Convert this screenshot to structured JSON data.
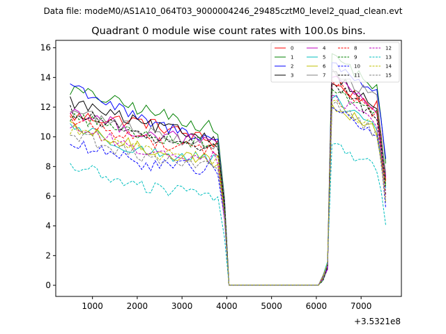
{
  "chart_data": {
    "type": "line",
    "suptitle": "Data file: modeM0/AS1A10_064T03_9000004246_29485cztM0_level2_quad_clean.evt",
    "title": "Quadrant 0 module wise count rates with 100.0s bins.",
    "xlabel": "",
    "ylabel": "",
    "x_offset_label": "+3.5321e8",
    "xlim": [
      180,
      7900
    ],
    "ylim": [
      -0.75,
      16.5
    ],
    "xticks": [
      1000,
      2000,
      3000,
      4000,
      5000,
      6000,
      7000
    ],
    "yticks": [
      0,
      2,
      4,
      6,
      8,
      10,
      12,
      14,
      16
    ],
    "xtick_labels": [
      "1000",
      "2000",
      "3000",
      "4000",
      "5000",
      "6000",
      "7000"
    ],
    "ytick_labels": [
      "0",
      "2",
      "4",
      "6",
      "8",
      "10",
      "12",
      "14",
      "16"
    ],
    "legend": {
      "position": "top-right",
      "columns": 4
    },
    "series": [
      {
        "name": "0",
        "color": "#ff0000",
        "dash": "solid",
        "seg1": [
          11.4,
          11.0,
          9.6
        ],
        "seg2": [
          13.6,
          12.0,
          6.8
        ]
      },
      {
        "name": "1",
        "color": "#008000",
        "dash": "solid",
        "seg1": [
          13.2,
          11.8,
          10.5
        ],
        "seg2": [
          15.6,
          13.2,
          7.9
        ]
      },
      {
        "name": "2",
        "color": "#0000ff",
        "dash": "solid",
        "seg1": [
          13.6,
          11.0,
          9.8
        ],
        "seg2": [
          15.0,
          13.0,
          8.2
        ]
      },
      {
        "name": "3",
        "color": "#000000",
        "dash": "solid",
        "seg1": [
          12.4,
          10.8,
          9.9
        ],
        "seg2": [
          14.4,
          11.8,
          7.0
        ]
      },
      {
        "name": "4",
        "color": "#bf00bf",
        "dash": "solid",
        "seg1": [
          11.8,
          10.2,
          9.6
        ],
        "seg2": [
          14.0,
          11.6,
          6.9
        ]
      },
      {
        "name": "5",
        "color": "#00bfbf",
        "dash": "solid",
        "seg1": [
          10.8,
          9.0,
          8.4
        ],
        "seg2": [
          12.6,
          10.6,
          6.2
        ]
      },
      {
        "name": "6",
        "color": "#bfbf00",
        "dash": "solid",
        "seg1": [
          10.6,
          9.2,
          8.3
        ],
        "seg2": [
          12.2,
          10.4,
          6.4
        ]
      },
      {
        "name": "7",
        "color": "#808080",
        "dash": "solid",
        "seg1": [
          11.8,
          10.4,
          9.4
        ],
        "seg2": [
          14.6,
          12.4,
          7.2
        ]
      },
      {
        "name": "8",
        "color": "#ff0000",
        "dash": "dashed",
        "seg1": [
          11.2,
          9.8,
          9.0
        ],
        "seg2": [
          13.8,
          11.4,
          6.6
        ]
      },
      {
        "name": "9",
        "color": "#008000",
        "dash": "dashed",
        "seg1": [
          11.4,
          10.2,
          9.4
        ],
        "seg2": [
          13.2,
          11.6,
          7.1
        ]
      },
      {
        "name": "10",
        "color": "#0000ff",
        "dash": "dashed",
        "seg1": [
          9.5,
          8.2,
          7.8
        ],
        "seg2": [
          12.0,
          10.0,
          5.6
        ]
      },
      {
        "name": "11",
        "color": "#000000",
        "dash": "dashed",
        "seg1": [
          11.8,
          10.0,
          9.2
        ],
        "seg2": [
          13.6,
          11.2,
          6.5
        ]
      },
      {
        "name": "12",
        "color": "#bf00bf",
        "dash": "dashed",
        "seg1": [
          10.8,
          9.0,
          8.6
        ],
        "seg2": [
          12.8,
          10.8,
          6.3
        ]
      },
      {
        "name": "13",
        "color": "#00bfbf",
        "dash": "dashed",
        "seg1": [
          8.1,
          6.6,
          6.0
        ],
        "seg2": [
          9.5,
          7.9,
          4.4
        ]
      },
      {
        "name": "14",
        "color": "#bfbf00",
        "dash": "dashed",
        "seg1": [
          10.6,
          9.0,
          8.4
        ],
        "seg2": [
          12.4,
          10.4,
          6.0
        ]
      },
      {
        "name": "15",
        "color": "#808080",
        "dash": "dashed",
        "seg1": [
          10.2,
          8.6,
          8.0
        ],
        "seg2": [
          12.2,
          10.2,
          5.9
        ]
      }
    ]
  }
}
